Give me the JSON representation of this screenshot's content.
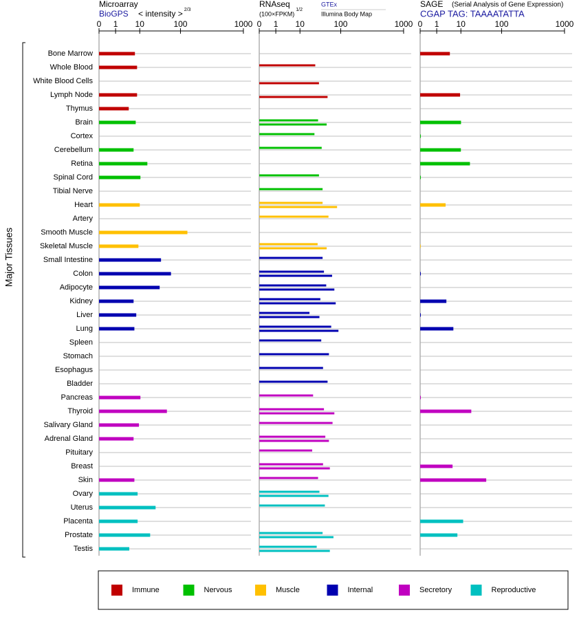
{
  "y_label": "Major Tissues",
  "groups": [
    {
      "name": "Immune",
      "color": "#c00000",
      "tissues": [
        "Bone Marrow",
        "Whole Blood",
        "White Blood Cells",
        "Lymph Node",
        "Thymus"
      ]
    },
    {
      "name": "Nervous",
      "color": "#00c000",
      "tissues": [
        "Brain",
        "Cortex",
        "Cerebellum",
        "Retina",
        "Spinal Cord",
        "Tibial Nerve"
      ]
    },
    {
      "name": "Muscle",
      "color": "#ffc000",
      "tissues": [
        "Heart",
        "Artery",
        "Smooth Muscle",
        "Skeletal Muscle"
      ]
    },
    {
      "name": "Internal",
      "color": "#0000b0",
      "tissues": [
        "Small Intestine",
        "Colon",
        "Adipocyte",
        "Kidney",
        "Liver",
        "Lung",
        "Spleen",
        "Stomach",
        "Esophagus",
        "Bladder"
      ]
    },
    {
      "name": "Secretory",
      "color": "#c000c0",
      "tissues": [
        "Pancreas",
        "Thyroid",
        "Salivary Gland",
        "Adrenal Gland",
        "Pituitary",
        "Breast",
        "Skin"
      ]
    },
    {
      "name": "Reproductive",
      "color": "#00c0c0",
      "tissues": [
        "Ovary",
        "Uterus",
        "Placenta",
        "Prostate",
        "Testis"
      ]
    }
  ],
  "panels": [
    {
      "title": "Microarray",
      "unit": "< intensity >",
      "unit_exp": "2/3",
      "ticks": [
        0,
        1,
        10,
        100,
        1000
      ],
      "series": [
        {
          "name": "BioGPS",
          "values": [
            8.2,
            9,
            null,
            9,
            5.9,
            8.5,
            null,
            7.7,
            26.8,
            11.5,
            null,
            10,
            null,
            199,
            9.5,
            57,
            79,
            54,
            7.7,
            8.7,
            8,
            null,
            null,
            null,
            null,
            11.5,
            70,
            9.7,
            7.7,
            null,
            null,
            8,
            9.2,
            45,
            9.2,
            33,
            6.1
          ]
        }
      ]
    },
    {
      "title": "RNAseq",
      "unit": "(100×FPKM)",
      "unit_exp": "1/2",
      "ticks": [
        0,
        1,
        10,
        100,
        1000
      ],
      "series": [
        {
          "name": "GTEx",
          "values": [
            null,
            43.8,
            null,
            null,
            null,
            50,
            42,
            58,
            null,
            52,
            60,
            60,
            73,
            null,
            49,
            60,
            63,
            68,
            55,
            31,
            79,
            57,
            74,
            61,
            71,
            39,
            63,
            82,
            66,
            37,
            61,
            50,
            53,
            65,
            null,
            60,
            47
          ]
        },
        {
          "name": "Illumina Body Map",
          "values": [
            null,
            null,
            52,
            71,
            null,
            69,
            null,
            null,
            null,
            null,
            null,
            92,
            null,
            null,
            69,
            null,
            81,
            86,
            89,
            53,
            95,
            null,
            null,
            null,
            null,
            null,
            86,
            null,
            74,
            null,
            76,
            null,
            73,
            null,
            null,
            84,
            76
          ]
        }
      ]
    },
    {
      "title": "SAGE",
      "subtitle": "(Serial Analysis of Gene Expression)",
      "ticks": [
        0,
        1,
        10,
        100,
        1000
      ],
      "series": [
        {
          "name": "CGAP TAG: TAAAATATTA",
          "values": [
            5.9,
            null,
            null,
            9.7,
            null,
            10.3,
            0.04,
            10,
            30,
            0.04,
            null,
            4.3,
            null,
            null,
            0.02,
            null,
            0.04,
            null,
            4.6,
            0.04,
            7.2,
            null,
            null,
            null,
            null,
            0.04,
            33,
            null,
            null,
            null,
            6.9,
            66,
            null,
            null,
            15,
            8.7,
            null
          ]
        }
      ]
    }
  ]
}
